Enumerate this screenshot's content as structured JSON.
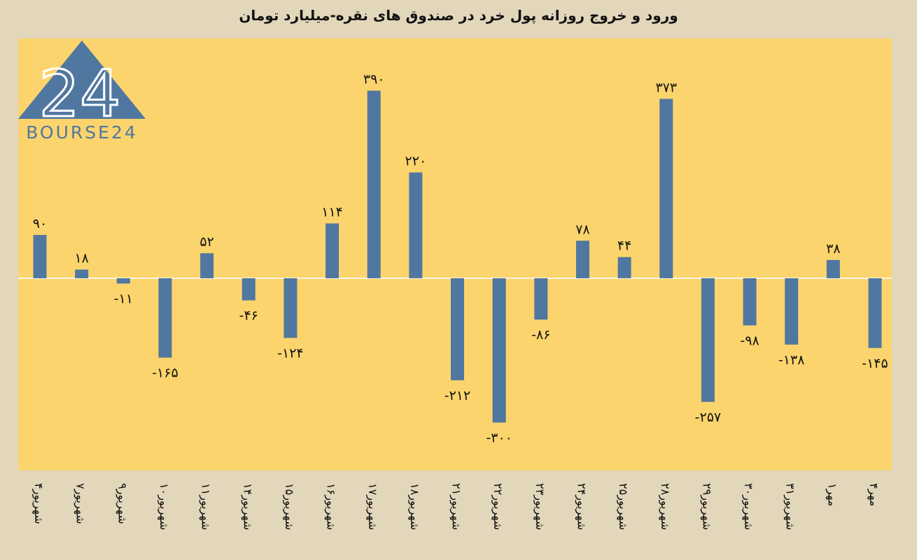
{
  "title": "ورود و خروج روزانه پول خرد در صندوق های نقره-میلیارد تومان",
  "logo": {
    "text": "BOURSE24",
    "mark": "24",
    "icon": "triangle-logo-icon"
  },
  "colors": {
    "background": "#e2d6bb",
    "plot_bg": "#fbd46d",
    "bar": "#5077a0",
    "zero_line": "#fdf6e3",
    "logo": "#5077a0"
  },
  "chart_data": {
    "type": "bar",
    "title": "ورود و خروج روزانه پول خرد در صندوق های نقره-میلیارد تومان",
    "xlabel": "",
    "ylabel": "",
    "ylim": [
      -400,
      450
    ],
    "grid": false,
    "categories": [
      "۴شهریور",
      "۷شهریور",
      "۹شهریور",
      "۱۰شهریور",
      "۱۱شهریور",
      "۱۴شهریور",
      "۱۵شهریور",
      "۱۶شهریور",
      "۱۷شهریور",
      "۱۸شهریور",
      "۲۱شهریور",
      "۲۲شهریور",
      "۲۳شهریور",
      "۲۴شهریور",
      "۲۵شهریور",
      "۲۸شهریور",
      "۲۹شهریور",
      "۳۰شهریور",
      "۳۱شهریور",
      "۱مهر",
      "۴مهر"
    ],
    "values": [
      90,
      18,
      -11,
      -165,
      52,
      -46,
      -124,
      114,
      390,
      220,
      -212,
      -300,
      -86,
      78,
      44,
      373,
      -257,
      -98,
      -138,
      38,
      -145
    ],
    "data_labels": [
      "۹۰",
      "۱۸",
      "-۱۱",
      "-۱۶۵",
      "۵۲",
      "-۴۶",
      "-۱۲۴",
      "۱۱۴",
      "۳۹۰",
      "۲۲۰",
      "-۲۱۲",
      "-۳۰۰",
      "-۸۶",
      "۷۸",
      "۴۴",
      "۳۷۳",
      "-۲۵۷",
      "-۹۸",
      "-۱۳۸",
      "۳۸",
      "-۱۴۵"
    ]
  }
}
